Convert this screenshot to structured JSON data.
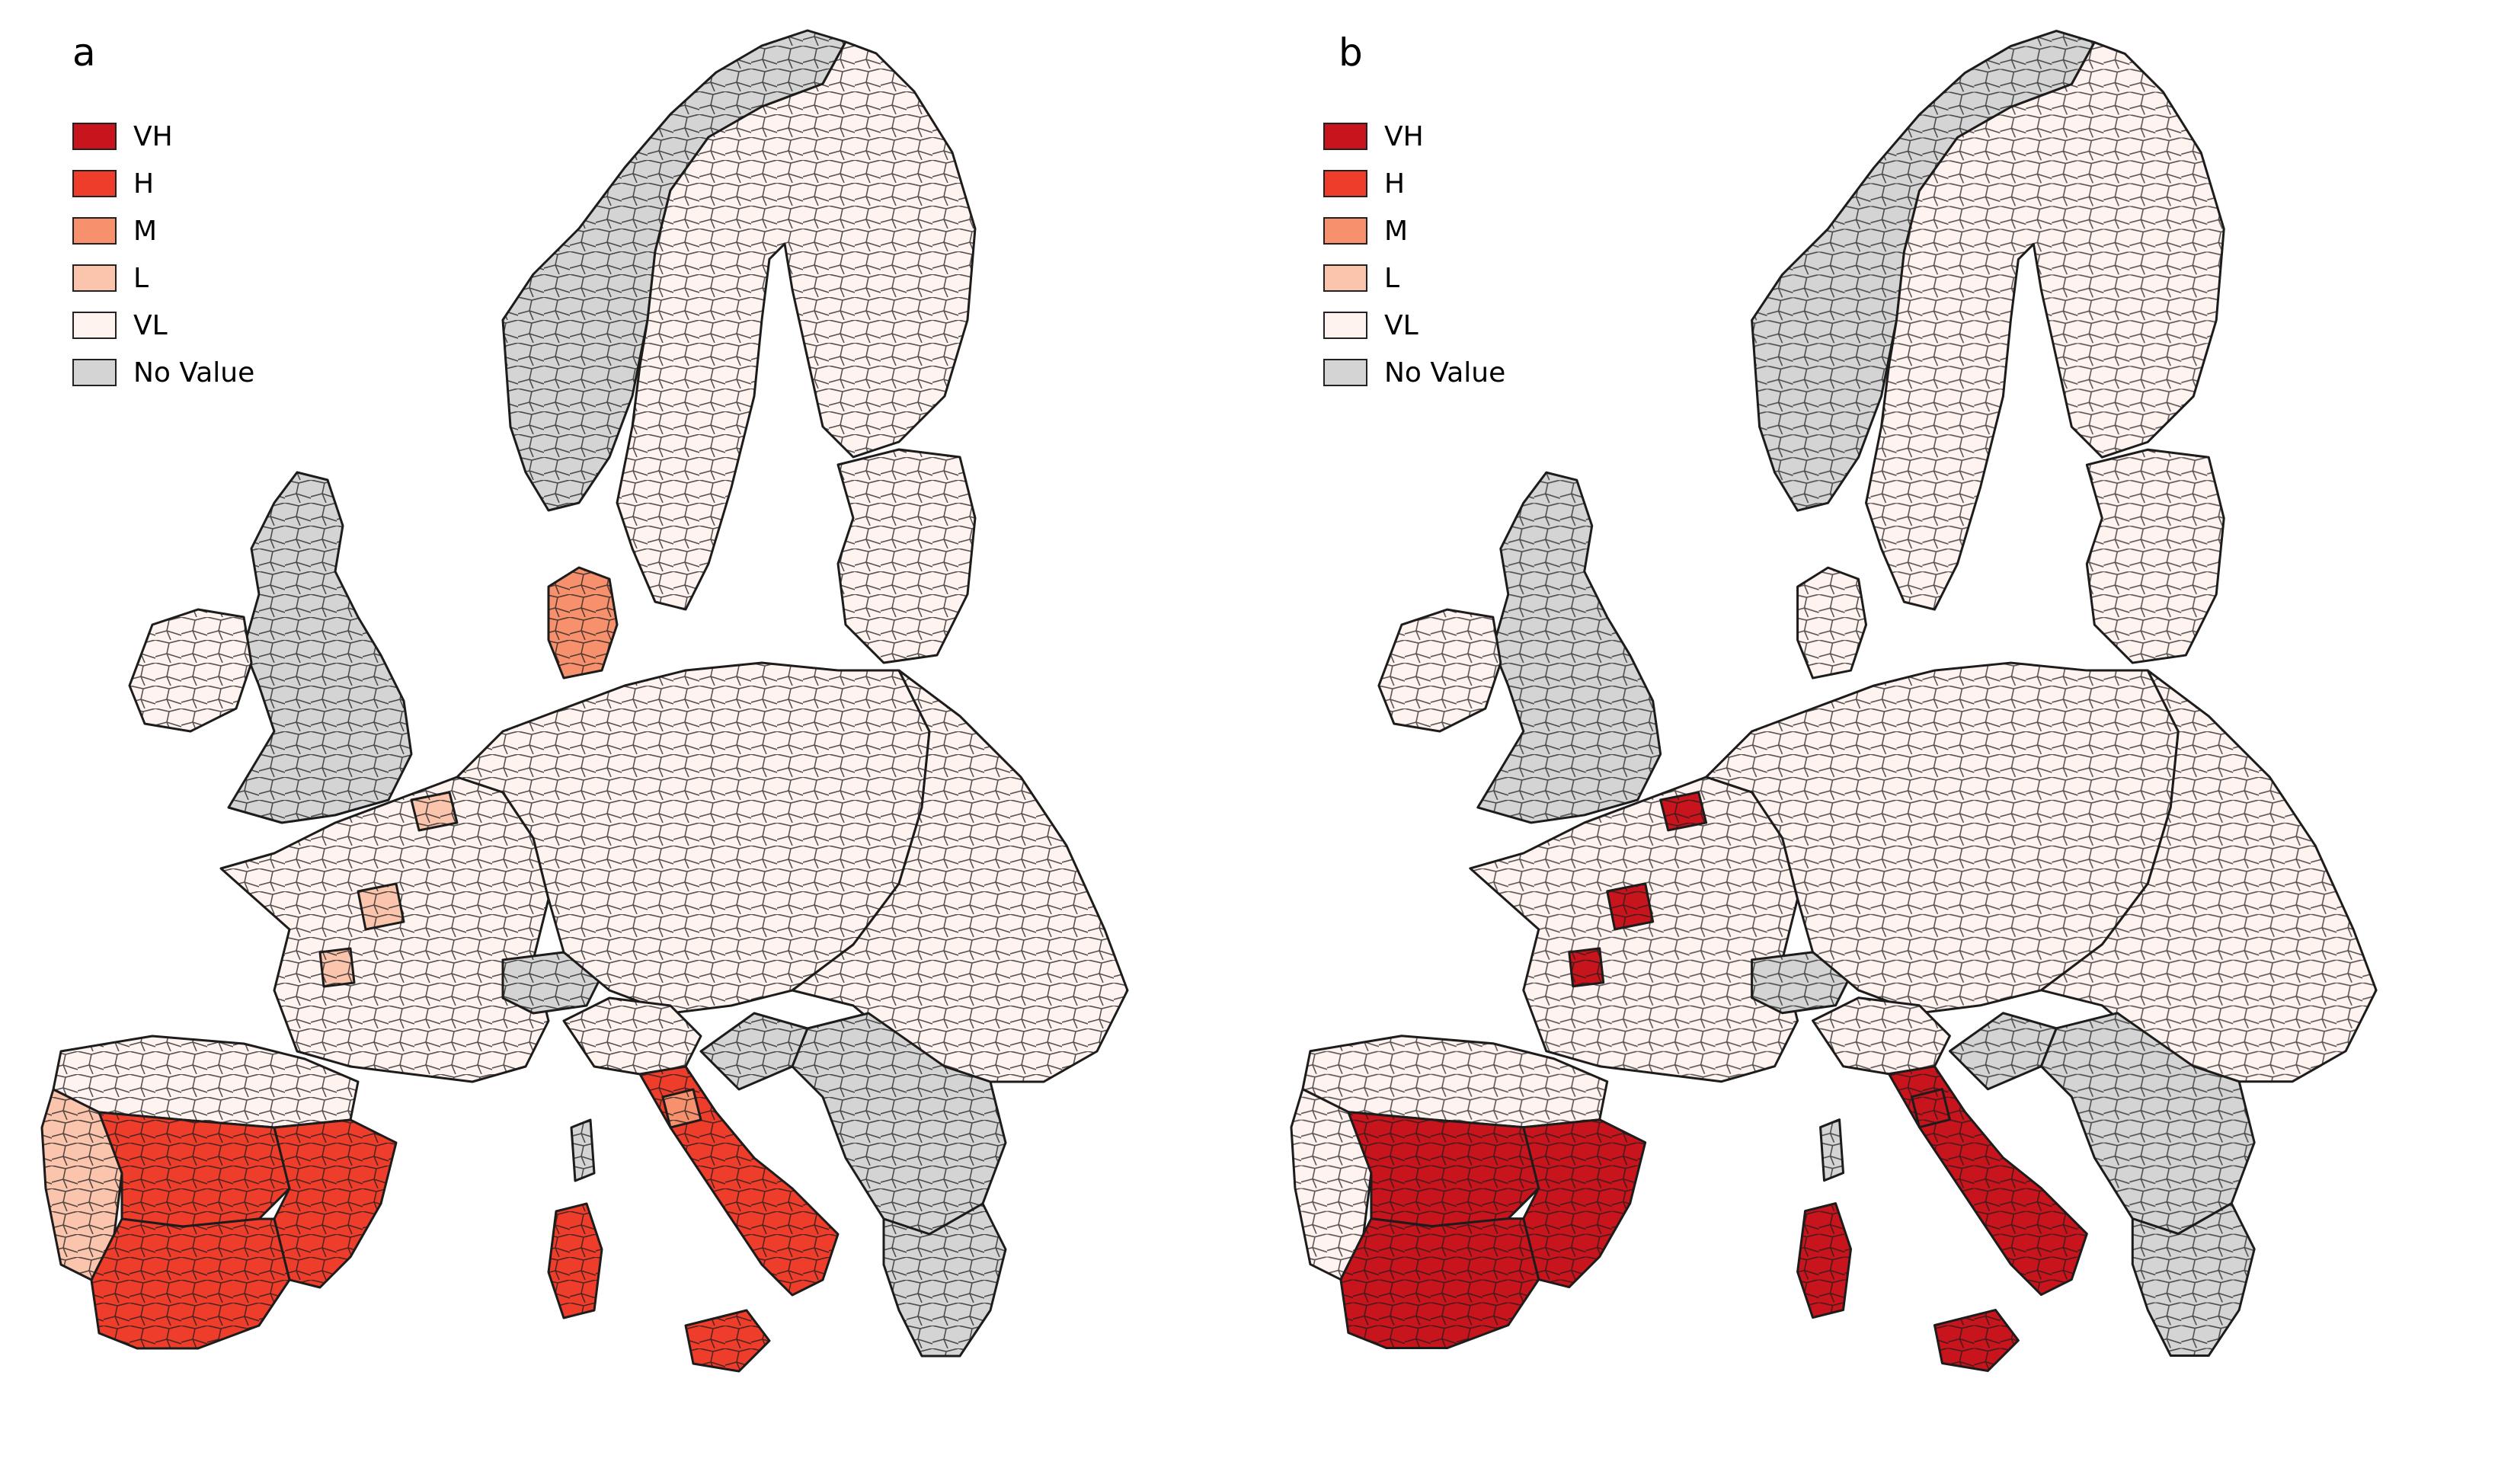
{
  "legend_items": [
    {
      "label": "VH",
      "class": "VH"
    },
    {
      "label": "H",
      "class": "H"
    },
    {
      "label": "M",
      "class": "M"
    },
    {
      "label": "L",
      "class": "L"
    },
    {
      "label": "VL",
      "class": "VL"
    },
    {
      "label": "No Value",
      "class": "NA"
    }
  ],
  "colors": {
    "VH": "#c8141c",
    "H": "#ef3d2c",
    "M": "#f7916d",
    "L": "#fbc4ad",
    "VL": "#fff3f0",
    "NA": "#d4d4d4",
    "border": "#1c1c1c"
  },
  "panels": [
    {
      "letter": "a",
      "class_by_area": {
        "iberia_north": "VL",
        "iberia_west": "L",
        "iberia_south": "H",
        "iberia_east": "H",
        "iberia_center": "H",
        "france": "VL",
        "france_spots": "L",
        "italy_north": "VL",
        "italy_south": "H",
        "sardinia": "H",
        "sicily": "H",
        "corsica": "NA",
        "uk": "NA",
        "ireland": "VL",
        "norway": "NA",
        "sweden_finland": "VL",
        "baltics": "VL",
        "denmark": "M",
        "central_europe": "VL",
        "eastern_europe": "VL",
        "balkans": "NA",
        "greece": "NA",
        "switzerland": "NA",
        "croatia": "NA",
        "italy_small": "M",
        "benelux_spots": "L"
      }
    },
    {
      "letter": "b",
      "class_by_area": {
        "iberia_north": "VL",
        "iberia_west": "VL",
        "iberia_south": "VH",
        "iberia_east": "VH",
        "iberia_center": "VH",
        "france": "VL",
        "france_spots": "VH",
        "italy_north": "VL",
        "italy_south": "VH",
        "sardinia": "VH",
        "sicily": "VH",
        "corsica": "NA",
        "uk": "NA",
        "ireland": "VL",
        "norway": "NA",
        "sweden_finland": "VL",
        "baltics": "VL",
        "denmark": "VL",
        "central_europe": "VL",
        "eastern_europe": "VL",
        "balkans": "NA",
        "greece": "NA",
        "switzerland": "NA",
        "croatia": "NA",
        "italy_small": "VH",
        "benelux_spots": "VH"
      }
    }
  ]
}
